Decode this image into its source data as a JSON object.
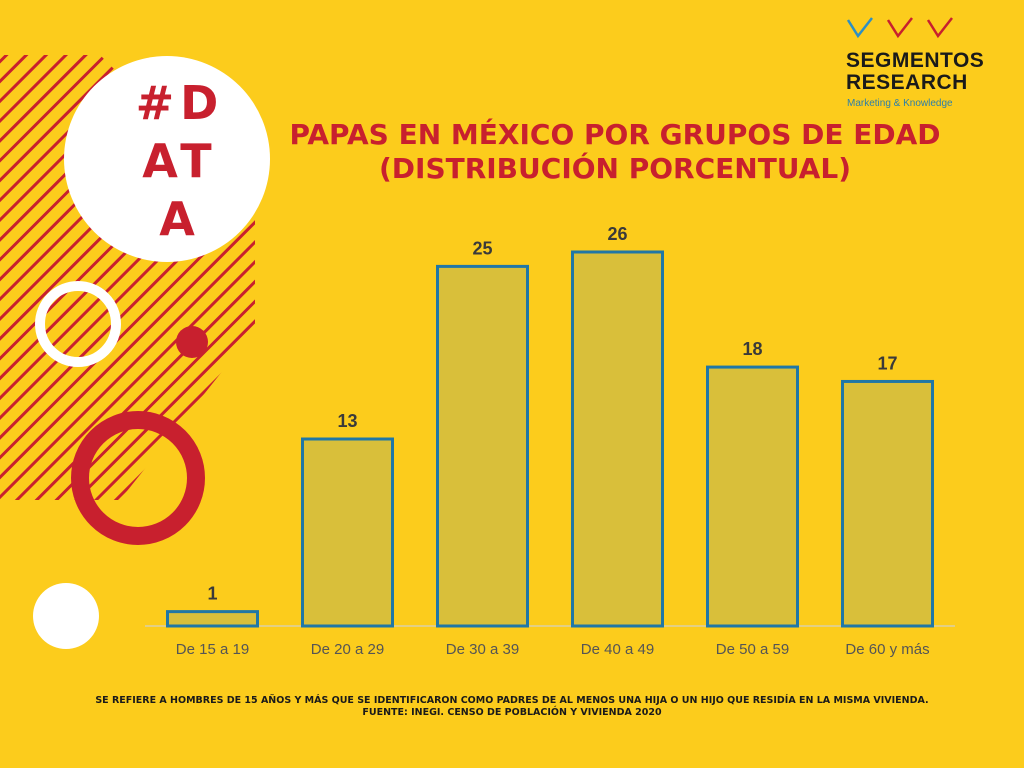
{
  "badge": {
    "line1": "#D",
    "line2": "AT",
    "line3": "A"
  },
  "logo": {
    "name_line1": "SEGMENTOS",
    "name_line2": "RESEARCH",
    "tagline": "Marketing & Knowledge",
    "checkmark_colors": [
      "#2d8fc4",
      "#c8202e",
      "#c8202e"
    ]
  },
  "title": {
    "line1": "PAPAS EN MÉXICO POR  GRUPOS DE EDAD",
    "line2": "(DISTRIBUCIÓN PORCENTUAL)"
  },
  "colors": {
    "background": "#fccc1c",
    "accent_red": "#c8202e",
    "bar_fill": "#d9bf3a",
    "bar_stroke": "#2077a6"
  },
  "chart_data": {
    "type": "bar",
    "categories": [
      "De 15 a 19",
      "De 20 a 29",
      "De 30 a 39",
      "De 40 a 49",
      "De 50 a 59",
      "De 60 y más"
    ],
    "values": [
      1,
      13,
      25,
      26,
      18,
      17
    ],
    "title": "PAPAS EN MÉXICO POR  GRUPOS DE EDAD (DISTRIBUCIÓN PORCENTUAL)",
    "xlabel": "",
    "ylabel": "",
    "ylim": [
      0,
      26
    ],
    "grid": false,
    "data_labels": true
  },
  "footnote": {
    "line1": "SE REFIERE A HOMBRES DE 15 AÑOS Y MÁS QUE SE IDENTIFICARON COMO PADRES DE AL MENOS UNA HIJA O UN HIJO QUE RESIDÍA EN LA MISMA VIVIENDA.",
    "line2": "FUENTE: INEGI. CENSO DE POBLACIÓN Y VIVIENDA 2020"
  }
}
